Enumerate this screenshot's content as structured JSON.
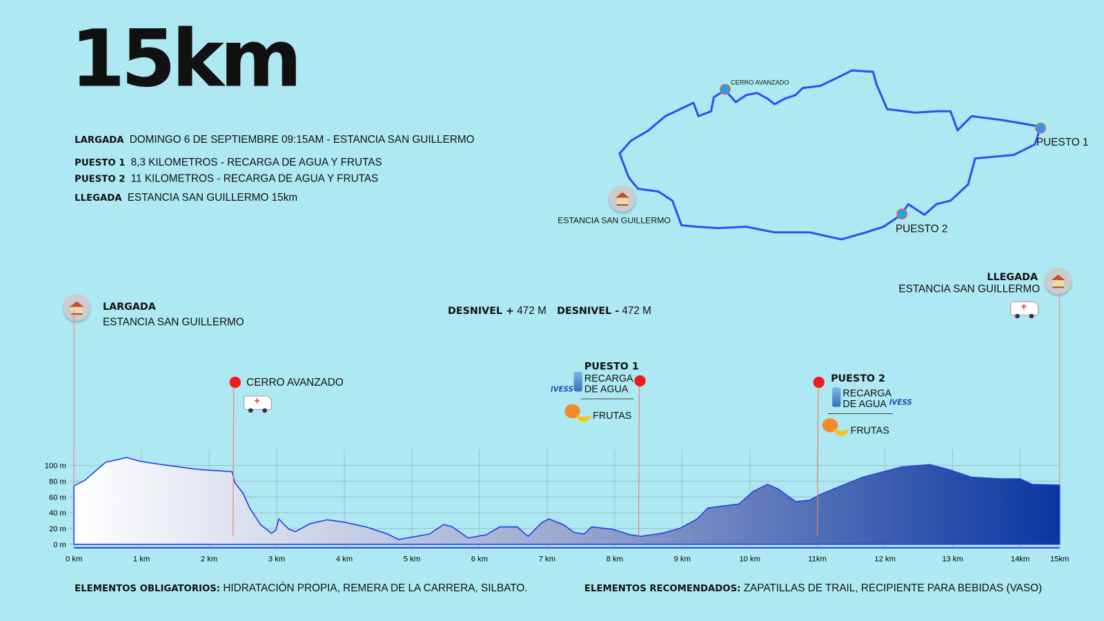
{
  "title": "15km",
  "info": [
    {
      "label": "LARGADA",
      "text": "DOMINGO 6 DE SEPTIEMBRE 09:15AM - ESTANCIA SAN GUILLERMO"
    },
    {
      "label": "PUESTO 1",
      "text": "8,3 KILOMETROS - RECARGA DE AGUA Y FRUTAS"
    },
    {
      "label": "PUESTO 2",
      "text": "11 KILOMETROS - RECARGA DE AGUA Y FRUTAS"
    },
    {
      "label": "LLEGADA",
      "text": "ESTANCIA SAN GUILLERMO 15km"
    }
  ],
  "map": {
    "cerro": "CERRO AVANZADO",
    "puesto1": "PUESTO 1",
    "puesto2": "PUESTO 2",
    "estancia": "ESTANCIA SAN GUILLERMO",
    "route_color": "#2f4ff0",
    "point_color": "#1da1e8"
  },
  "profile": {
    "largada_label": "LARGADA",
    "largada_place": "ESTANCIA SAN GUILLERMO",
    "llegada_label": "LLEGADA",
    "llegada_place": "ESTANCIA SAN GUILLERMO",
    "desnivel_pos_label": "DESNIVEL +",
    "desnivel_pos_value": "472 M",
    "desnivel_neg_label": "DESNIVEL -",
    "desnivel_neg_value": "472 M",
    "cerro": "CERRO AVANZADO",
    "puesto1": {
      "title": "PUESTO 1",
      "water": "RECARGA",
      "water2": "DE AGUA",
      "fruit": "FRUTAS",
      "brand": "IVESS"
    },
    "puesto2": {
      "title": "PUESTO 2",
      "water": "RECARGA",
      "water2": "DE AGUA",
      "fruit": "FRUTAS",
      "brand": "IVESS"
    }
  },
  "chart_data": {
    "type": "area",
    "xlabel": "",
    "ylabel": "",
    "y_ticks": [
      "0 m",
      "20 m",
      "40 m",
      "60 m",
      "80 m",
      "100 m"
    ],
    "y_tick_values": [
      0,
      20,
      40,
      60,
      80,
      100
    ],
    "x_ticks": [
      "0 km",
      "1 km",
      "2 km",
      "3 km",
      "4 km",
      "5 km",
      "6 km",
      "7 km",
      "8 km",
      "9 km",
      "10 km",
      "11km",
      "12 km",
      "13 km",
      "14km",
      "15km"
    ],
    "ylim": [
      0,
      120
    ],
    "x": [
      0,
      0.16,
      0.47,
      0.78,
      0.99,
      1.3,
      1.82,
      2.34,
      2.38,
      2.5,
      2.6,
      2.76,
      2.92,
      2.99,
      3.03,
      3.18,
      3.28,
      3.49,
      3.75,
      4.0,
      4.32,
      4.64,
      4.8,
      5.0,
      5.26,
      5.47,
      5.6,
      5.83,
      6.1,
      6.3,
      6.56,
      6.72,
      6.93,
      7.03,
      7.24,
      7.4,
      7.55,
      7.66,
      7.97,
      8.23,
      8.39,
      8.7,
      8.96,
      9.22,
      9.38,
      9.84,
      10.05,
      10.26,
      10.42,
      10.68,
      10.89,
      11.04,
      11.41,
      11.67,
      11.98,
      12.24,
      12.66,
      12.97,
      13.28,
      13.7,
      14.0,
      14.3,
      15.0
    ],
    "y": [
      74,
      81,
      104,
      110,
      105,
      101,
      95,
      92,
      78,
      65,
      46,
      25,
      14,
      18,
      32,
      19,
      16,
      26,
      31,
      28,
      22,
      13,
      6,
      9,
      13,
      25,
      22,
      8,
      12,
      22,
      22,
      10,
      28,
      32,
      25,
      15,
      13,
      22,
      19,
      12,
      10,
      14,
      20,
      32,
      46,
      51,
      67,
      76,
      70,
      54,
      56,
      63,
      76,
      85,
      92,
      98,
      101,
      94,
      85,
      83,
      83,
      76,
      75
    ],
    "markers": [
      {
        "name": "CERRO AVANZADO",
        "km": 2.35
      },
      {
        "name": "PUESTO 1",
        "km": 8.3
      },
      {
        "name": "PUESTO 2",
        "km": 11
      }
    ]
  },
  "footer": {
    "oblig_label": "ELEMENTOS OBLIGATORIOS:",
    "oblig_text": "HIDRATACIÓN PROPIA, REMERA DE LA CARRERA, SILBATO.",
    "recom_label": "ELEMENTOS RECOMENDADOS:",
    "recom_text": "ZAPATILLAS DE TRAIL, RECIPIENTE PARA BEBIDAS (VASO)"
  }
}
